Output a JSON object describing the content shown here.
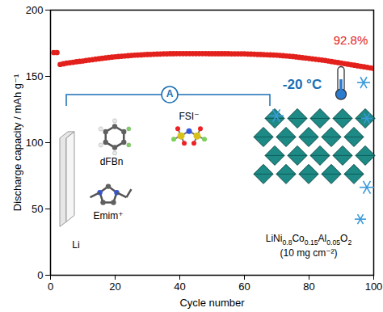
{
  "chart_data": {
    "type": "scatter",
    "x_label": "Cycle number",
    "y_label": "Discharge capacity / mAh g⁻¹",
    "color": "#e3211c",
    "marker": "circle",
    "grid": false,
    "xlim": [
      0,
      100
    ],
    "xticks": [
      0,
      20,
      40,
      60,
      80,
      100
    ],
    "ylim": [
      0,
      200
    ],
    "yticks": [
      0,
      50,
      100,
      150,
      200
    ],
    "x": [
      1,
      2,
      3,
      4,
      5,
      6,
      7,
      8,
      9,
      10,
      11,
      12,
      13,
      14,
      15,
      16,
      17,
      18,
      19,
      20,
      21,
      22,
      23,
      24,
      25,
      26,
      27,
      28,
      29,
      30,
      31,
      32,
      33,
      34,
      35,
      36,
      37,
      38,
      39,
      40,
      41,
      42,
      43,
      44,
      45,
      46,
      47,
      48,
      49,
      50,
      51,
      52,
      53,
      54,
      55,
      56,
      57,
      58,
      59,
      60,
      61,
      62,
      63,
      64,
      65,
      66,
      67,
      68,
      69,
      70,
      71,
      72,
      73,
      74,
      75,
      76,
      77,
      78,
      79,
      80,
      81,
      82,
      83,
      84,
      85,
      86,
      87,
      88,
      89,
      90,
      91,
      92,
      93,
      94,
      95,
      96,
      97,
      98,
      99,
      100
    ],
    "values": [
      168,
      168,
      159,
      159.5,
      160,
      160.3,
      160.6,
      161,
      161.3,
      161.6,
      162,
      162.3,
      162.6,
      163,
      163.3,
      163.6,
      163.9,
      164.2,
      164.5,
      164.8,
      165,
      165.2,
      165.4,
      165.6,
      165.8,
      166,
      166.1,
      166.2,
      166.4,
      166.5,
      166.6,
      166.7,
      166.8,
      166.9,
      167,
      167,
      167.1,
      167.1,
      167.2,
      167.2,
      167.2,
      167.2,
      167.2,
      167.2,
      167.2,
      167.2,
      167.2,
      167.2,
      167.1,
      167.1,
      167.1,
      167.1,
      167.1,
      167.1,
      167.1,
      167,
      167,
      167,
      167,
      167,
      166.9,
      166.8,
      166.7,
      166.6,
      166.5,
      166.4,
      166.3,
      166.2,
      166.1,
      166,
      165.8,
      165.6,
      165.4,
      165.2,
      165,
      164.7,
      164.4,
      164.1,
      163.8,
      163.5,
      163.2,
      162.9,
      162.6,
      162.3,
      162,
      161.6,
      161.2,
      160.8,
      160.4,
      160,
      159.6,
      159.2,
      158.8,
      158.4,
      158,
      157.6,
      157.2,
      156.8,
      156.4,
      156
    ],
    "annotations": [
      "92.8%",
      "-20 °C",
      "A",
      "dFBn",
      "FSI⁻",
      "Emim⁺",
      "Li",
      "LiNi0.8Co0.15Al0.05O2",
      "(10 mg cm⁻²)"
    ]
  }
}
